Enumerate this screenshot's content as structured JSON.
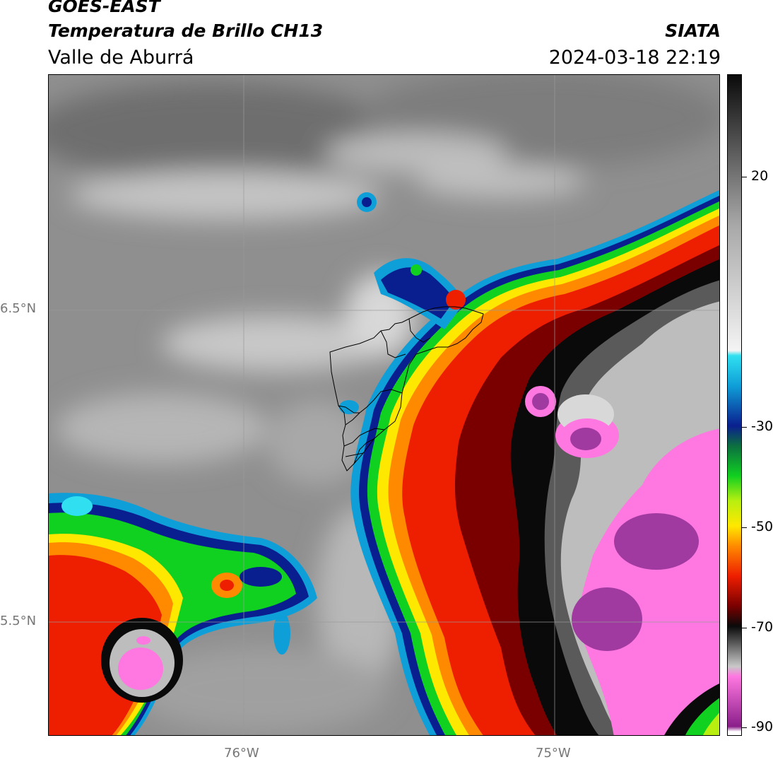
{
  "header": {
    "satellite": "GOES-EAST",
    "product": "Temperatura de Brillo CH13",
    "region": "Valle de Aburrá",
    "organization": "SIATA",
    "datetime": "2024-03-18 22:19"
  },
  "axes": {
    "latitude_labels": [
      "6.5°N",
      "5.5°N"
    ],
    "longitude_labels": [
      "76°W",
      "75°W"
    ]
  },
  "colorbar": {
    "tick_labels": [
      "20",
      "-30",
      "-50",
      "-70",
      "-90"
    ],
    "min": -92,
    "max": 40,
    "stops": [
      {
        "v": 40,
        "c": "#0a0a0a"
      },
      {
        "v": 25,
        "c": "#5a5a5a"
      },
      {
        "v": 10,
        "c": "#a8a8a8"
      },
      {
        "v": -15,
        "c": "#f4f4f4"
      },
      {
        "v": -16,
        "c": "#30e0f0"
      },
      {
        "v": -22,
        "c": "#0f9fd8"
      },
      {
        "v": -30,
        "c": "#0a1f8f"
      },
      {
        "v": -34,
        "c": "#0c6f40"
      },
      {
        "v": -40,
        "c": "#10d020"
      },
      {
        "v": -45,
        "c": "#b8ef10"
      },
      {
        "v": -50,
        "c": "#ffe800"
      },
      {
        "v": -54,
        "c": "#ff8a00"
      },
      {
        "v": -60,
        "c": "#ee1e00"
      },
      {
        "v": -66,
        "c": "#7a0000"
      },
      {
        "v": -70,
        "c": "#0a0a0a"
      },
      {
        "v": -78,
        "c": "#c8c8c8"
      },
      {
        "v": -80,
        "c": "#ff77e0"
      },
      {
        "v": -90,
        "c": "#8a1f8a"
      },
      {
        "v": -91,
        "c": "#ffffff"
      },
      {
        "v": -92,
        "c": "#ffffff"
      }
    ]
  }
}
